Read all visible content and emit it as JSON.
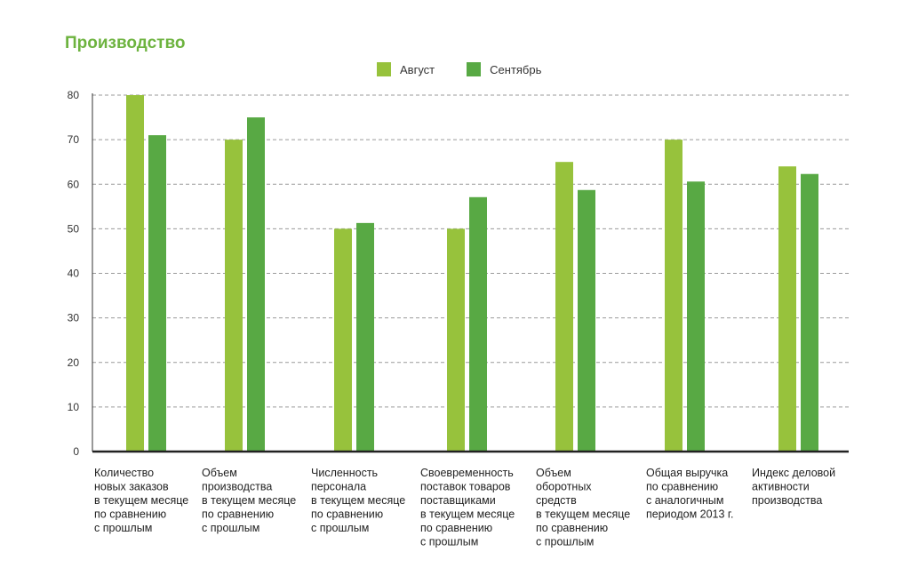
{
  "chart_data": {
    "type": "bar",
    "title": "Производство",
    "xlabel": "",
    "ylabel": "",
    "ylim": [
      0,
      80
    ],
    "yticks": [
      0,
      10,
      20,
      30,
      40,
      50,
      60,
      70,
      80
    ],
    "grid": true,
    "legend_position": "top-center",
    "categories": [
      [
        "Количество",
        "новых заказов",
        "в текущем месяце",
        "по сравнению",
        "с прошлым"
      ],
      [
        "Объем",
        "производства",
        "в текущем месяце",
        "по сравнению",
        "с прошлым"
      ],
      [
        "Численность",
        "персонала",
        "в текущем месяце",
        "по сравнению",
        "с прошлым"
      ],
      [
        "Своевременность",
        "поставок товаров",
        "поставщиками",
        "в текущем месяце",
        "по сравнению",
        "с прошлым"
      ],
      [
        "Объем",
        "оборотных",
        "средств",
        "в текущем месяце",
        "по сравнению",
        "с прошлым"
      ],
      [
        "Общая выручка",
        "по сравнению",
        "с аналогичным",
        "периодом 2013 г."
      ],
      [
        "Индекс деловой",
        "активности",
        "производства"
      ]
    ],
    "series": [
      {
        "name": "Август",
        "color": "#97c23c",
        "values": [
          80,
          70,
          50,
          50,
          65,
          70,
          64
        ]
      },
      {
        "name": "Сентябрь",
        "color": "#58a944",
        "values": [
          71,
          75,
          51.3,
          57.1,
          58.7,
          60.6,
          62.3
        ]
      }
    ]
  }
}
